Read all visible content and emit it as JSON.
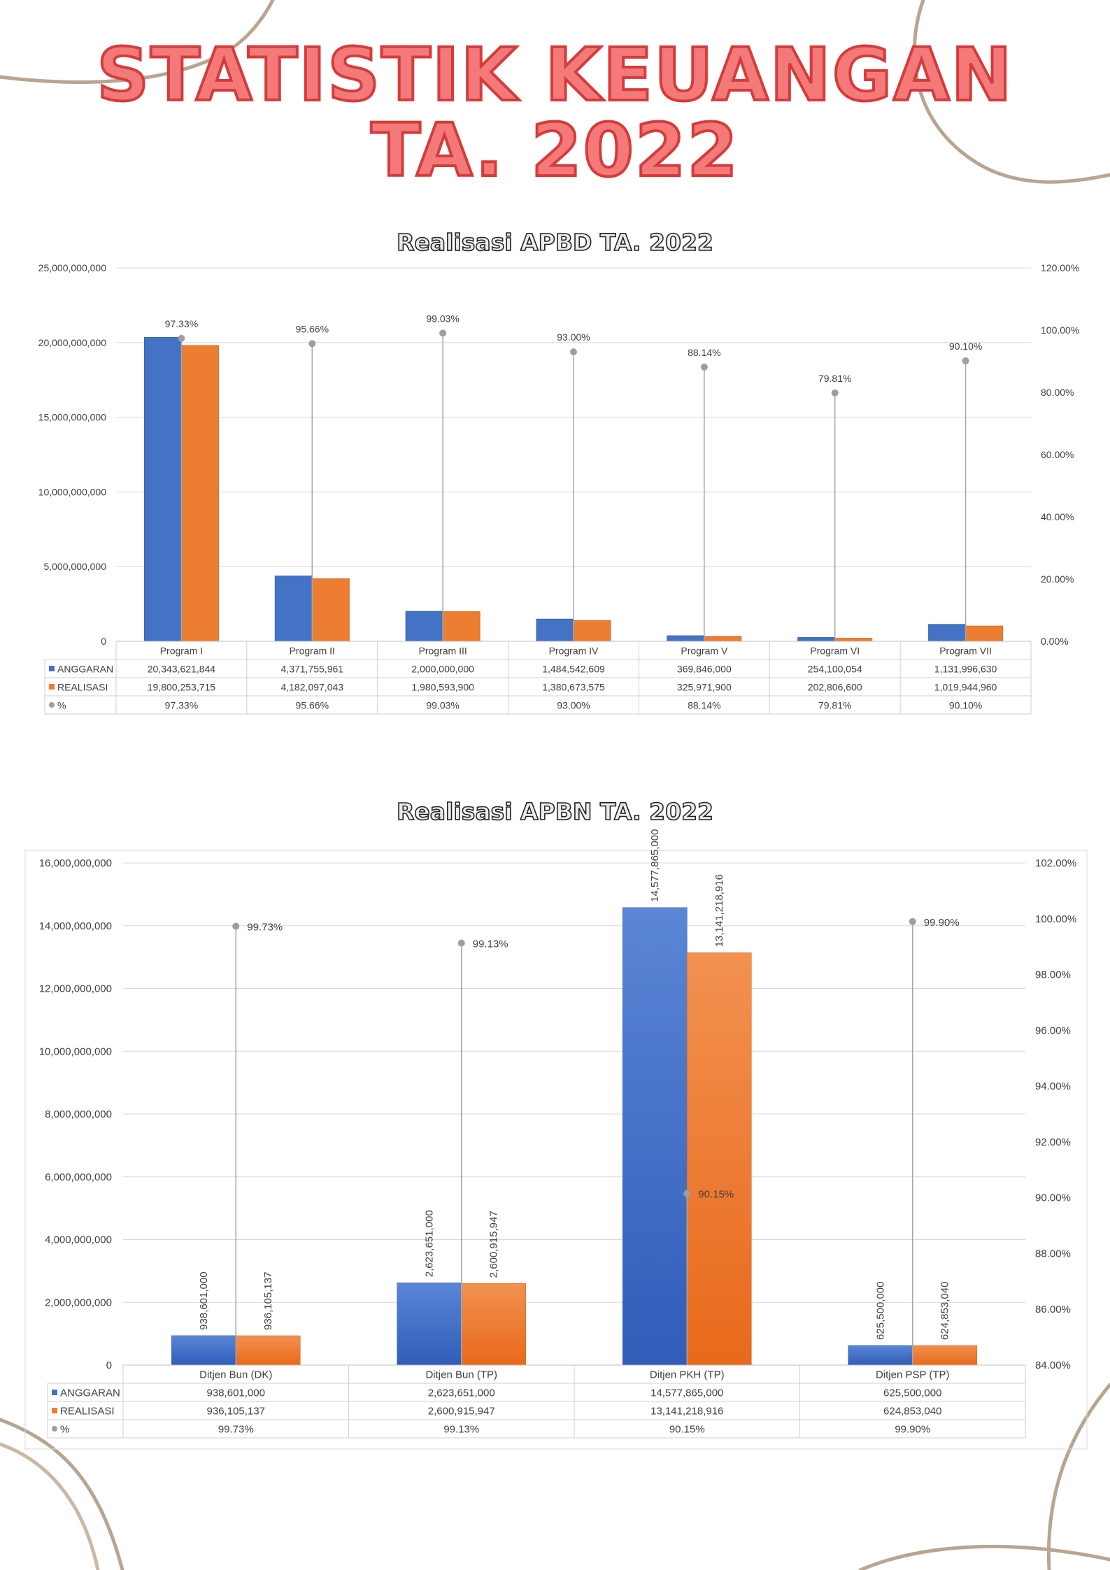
{
  "page": {
    "title_line1": "STATISTIK KEUANGAN",
    "title_line2": "TA. 2022"
  },
  "colors": {
    "anggaran": "#4472c4",
    "realisasi": "#ed7d31",
    "percent": "#9e9e9e",
    "title_fill": "#f47a7a",
    "decor_line": "#b8a590"
  },
  "chart_data": [
    {
      "type": "bar",
      "title": "Realisasi APBD TA. 2022",
      "categories": [
        "Program I",
        "Program II",
        "Program III",
        "Program IV",
        "Program V",
        "Program VI",
        "Program VII"
      ],
      "series": [
        {
          "name": "ANGGARAN",
          "axis": "left",
          "values": [
            20343621844,
            4371755961,
            2000000000,
            1484542609,
            369846000,
            254100054,
            1131996630
          ],
          "labels": [
            "20,343,621,844",
            "4,371,755,961",
            "2,000,000,000",
            "1,484,542,609",
            "369,846,000",
            "254,100,054",
            "1,131,996,630"
          ]
        },
        {
          "name": "REALISASI",
          "axis": "left",
          "values": [
            19800253715,
            4182097043,
            1980593900,
            1380673575,
            325971900,
            202806600,
            1019944960
          ],
          "labels": [
            "19,800,253,715",
            "4,182,097,043",
            "1,980,593,900",
            "1,380,673,575",
            "325,971,900",
            "202,806,600",
            "1,019,944,960"
          ]
        },
        {
          "name": "%",
          "axis": "right",
          "type": "drop-line",
          "values": [
            97.33,
            95.66,
            99.03,
            93.0,
            88.14,
            79.81,
            90.1
          ],
          "labels": [
            "97.33%",
            "95.66%",
            "99.03%",
            "93.00%",
            "88.14%",
            "79.81%",
            "90.10%"
          ]
        }
      ],
      "ylim": [
        0,
        25000000000
      ],
      "y_ticks": [
        "0",
        "5,000,000,000",
        "10,000,000,000",
        "15,000,000,000",
        "20,000,000,000",
        "25,000,000,000"
      ],
      "y2lim": [
        0,
        120
      ],
      "y2_ticks": [
        "0.00%",
        "20.00%",
        "40.00%",
        "60.00%",
        "80.00%",
        "100.00%",
        "120.00%"
      ],
      "grid": true,
      "legend": "data-table"
    },
    {
      "type": "bar",
      "title": "Realisasi APBN TA. 2022",
      "categories": [
        "Ditjen Bun (DK)",
        "Ditjen Bun (TP)",
        "Ditjen PKH (TP)",
        "Ditjen PSP (TP)"
      ],
      "series": [
        {
          "name": "ANGGARAN",
          "axis": "left",
          "values": [
            938601000,
            2623651000,
            14577865000,
            625500000
          ],
          "labels": [
            "938,601,000",
            "2,623,651,000",
            "14,577,865,000",
            "625,500,000"
          ]
        },
        {
          "name": "REALISASI",
          "axis": "left",
          "values": [
            936105137,
            2600915947,
            13141218916,
            624853040
          ],
          "labels": [
            "936,105,137",
            "2,600,915,947",
            "13,141,218,916",
            "624,853,040"
          ]
        },
        {
          "name": "%",
          "axis": "right",
          "type": "drop-line",
          "values": [
            99.73,
            99.13,
            90.15,
            99.9
          ],
          "labels": [
            "99.73%",
            "99.13%",
            "90.15%",
            "99.90%"
          ]
        }
      ],
      "ylim": [
        0,
        16000000000
      ],
      "y_ticks": [
        "0",
        "2,000,000,000",
        "4,000,000,000",
        "6,000,000,000",
        "8,000,000,000",
        "10,000,000,000",
        "12,000,000,000",
        "14,000,000,000",
        "16,000,000,000"
      ],
      "y2lim": [
        84,
        102
      ],
      "y2_ticks": [
        "84.00%",
        "86.00%",
        "88.00%",
        "90.00%",
        "92.00%",
        "94.00%",
        "96.00%",
        "98.00%",
        "100.00%",
        "102.00%"
      ],
      "grid": true,
      "legend": "data-table"
    }
  ]
}
